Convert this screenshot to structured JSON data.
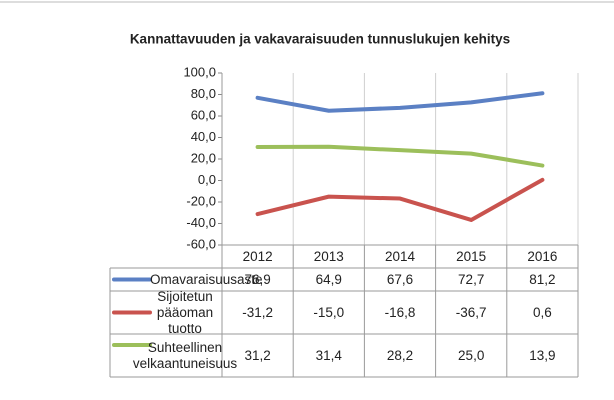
{
  "chart_data": {
    "type": "line",
    "title": "Kannattavuuden ja vakavaraisuuden tunnuslukujen kehitys",
    "categories": [
      "2012",
      "2013",
      "2014",
      "2015",
      "2016"
    ],
    "series": [
      {
        "name": "Omavaraisuusaste",
        "color": "#5b80c4",
        "values": [
          76.9,
          64.9,
          67.6,
          72.7,
          81.2
        ],
        "value_labels": [
          "76,9",
          "64,9",
          "67,6",
          "72,7",
          "81,2"
        ]
      },
      {
        "name": "Sijoitetun pääoman tuotto",
        "color": "#c9534e",
        "values": [
          -31.2,
          -15.0,
          -16.8,
          -36.7,
          0.6
        ],
        "value_labels": [
          "-31,2",
          "-15,0",
          "-16,8",
          "-36,7",
          "0,6"
        ]
      },
      {
        "name": "Suhteellinen velkaantuneisuus",
        "color": "#9cbf5b",
        "values": [
          31.2,
          31.4,
          28.2,
          25.0,
          13.9
        ],
        "value_labels": [
          "31,2",
          "31,4",
          "28,2",
          "25,0",
          "13,9"
        ]
      }
    ],
    "ylim": [
      -60,
      100
    ],
    "yticks": [
      {
        "value": -60,
        "label": "-60,0"
      },
      {
        "value": -40,
        "label": "-40,0"
      },
      {
        "value": -20,
        "label": "-20,0"
      },
      {
        "value": 0,
        "label": "0,0"
      },
      {
        "value": 20,
        "label": "20,0"
      },
      {
        "value": 40,
        "label": "40,0"
      },
      {
        "value": 60,
        "label": "60,0"
      },
      {
        "value": 80,
        "label": "80,0"
      },
      {
        "value": 100,
        "label": "100,0"
      }
    ]
  }
}
